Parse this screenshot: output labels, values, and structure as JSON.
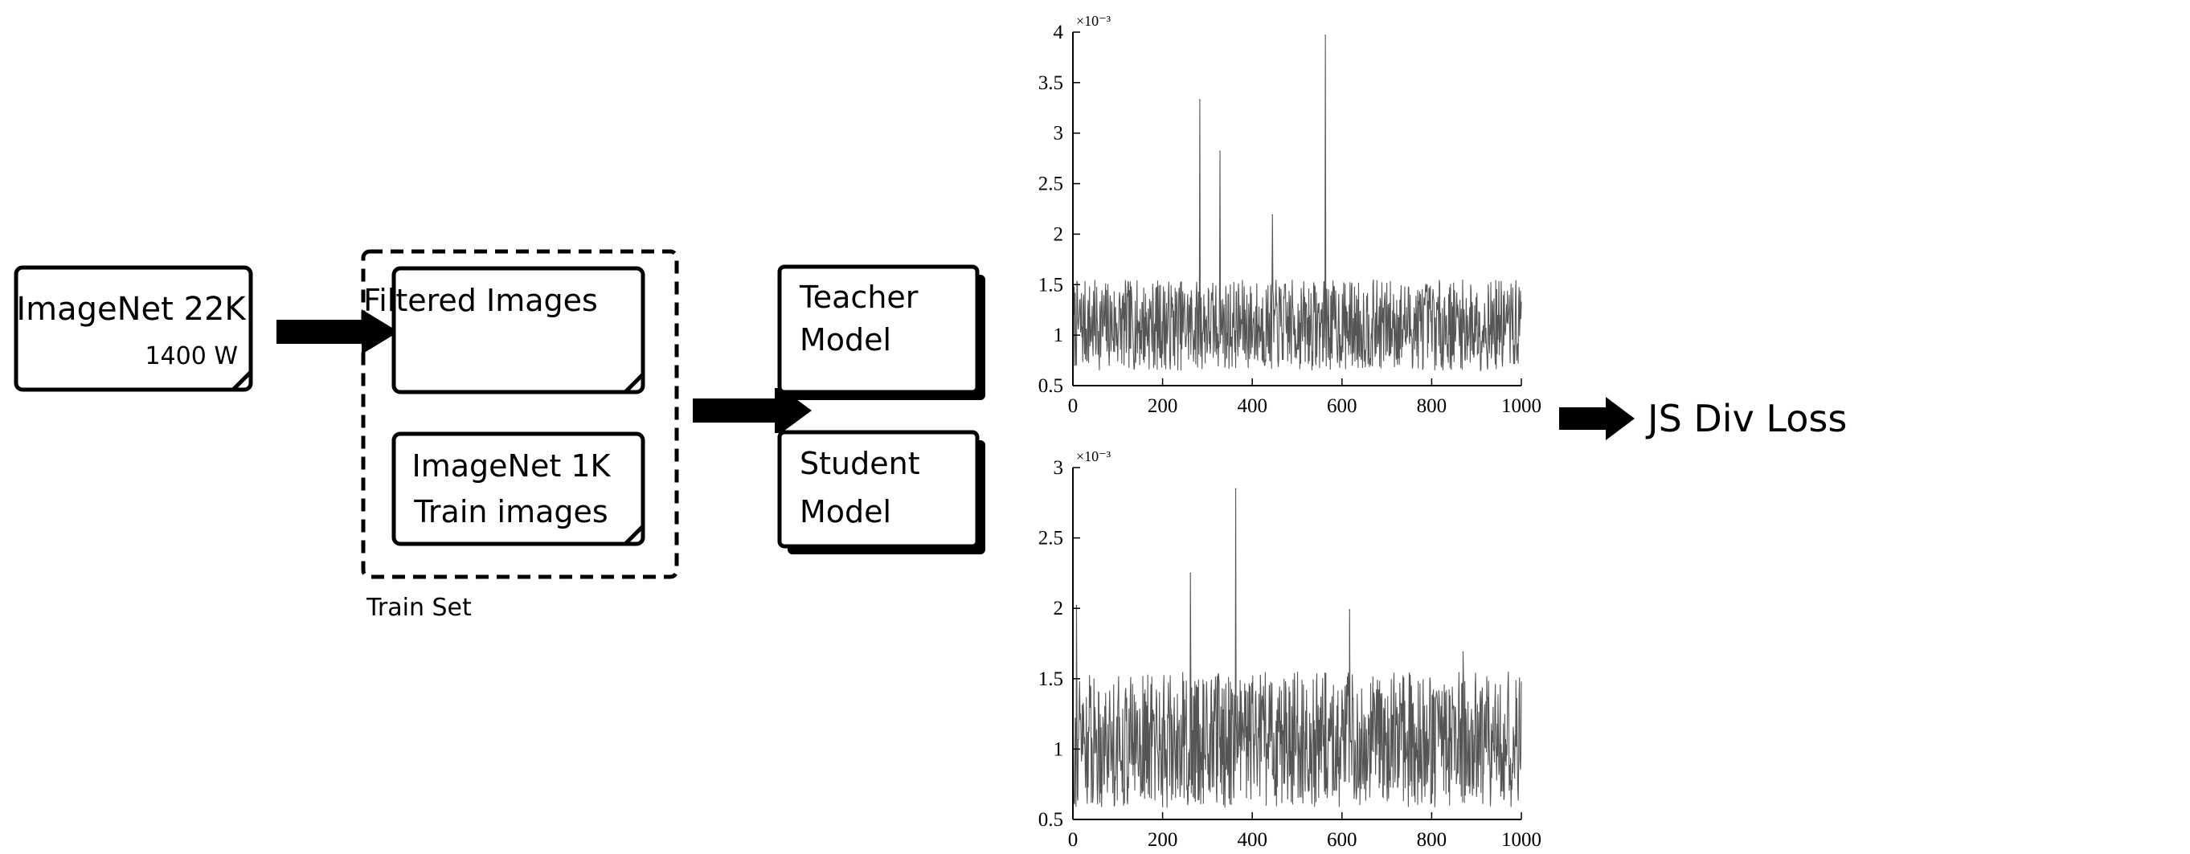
{
  "diagram": {
    "source_box": {
      "title": "ImageNet 22K",
      "subtitle": "1400 W"
    },
    "train_set": {
      "label": "Train Set",
      "filtered_box": {
        "title": "Filtered Images"
      },
      "imagenet1k_box": {
        "line1": "ImageNet 1K",
        "line2": "Train images"
      }
    },
    "teacher_box": {
      "line1": "Teacher",
      "line2": "Model"
    },
    "student_box": {
      "line1": "Student",
      "line2": "Model"
    },
    "output_label": "JS Div Loss"
  },
  "chart_data": [
    {
      "type": "line",
      "role": "teacher",
      "title": "",
      "xlabel": "",
      "ylabel": "",
      "xlim": [
        0,
        1000
      ],
      "ylim": [
        0.5,
        4
      ],
      "x_ticks": [
        "0",
        "200",
        "400",
        "600",
        "800",
        "1000"
      ],
      "y_ticks": [
        "0.5",
        "1",
        "1.5",
        "2",
        "2.5",
        "3",
        "3.5",
        "4"
      ],
      "y_exponent": "×10⁻³",
      "grid": false,
      "legend": "none",
      "series_color": "#555555",
      "baseline_range": [
        0.65,
        1.55
      ],
      "spikes": [
        {
          "x": 283,
          "y": 3.33
        },
        {
          "x": 328,
          "y": 2.82
        },
        {
          "x": 445,
          "y": 2.19
        },
        {
          "x": 563,
          "y": 3.97
        }
      ]
    },
    {
      "type": "line",
      "role": "student",
      "title": "",
      "xlabel": "",
      "ylabel": "",
      "xlim": [
        0,
        1000
      ],
      "ylim": [
        0.5,
        3
      ],
      "x_ticks": [
        "0",
        "200",
        "400",
        "600",
        "800",
        "1000"
      ],
      "y_ticks": [
        "0.5",
        "1",
        "1.5",
        "2",
        "2.5",
        "3"
      ],
      "y_exponent": "×10⁻³",
      "grid": false,
      "legend": "none",
      "series_color": "#555555",
      "baseline_range": [
        0.58,
        1.55
      ],
      "spikes": [
        {
          "x": 8,
          "y": 2.02
        },
        {
          "x": 262,
          "y": 2.25
        },
        {
          "x": 363,
          "y": 2.85
        },
        {
          "x": 617,
          "y": 1.99
        },
        {
          "x": 870,
          "y": 1.69
        }
      ]
    }
  ]
}
